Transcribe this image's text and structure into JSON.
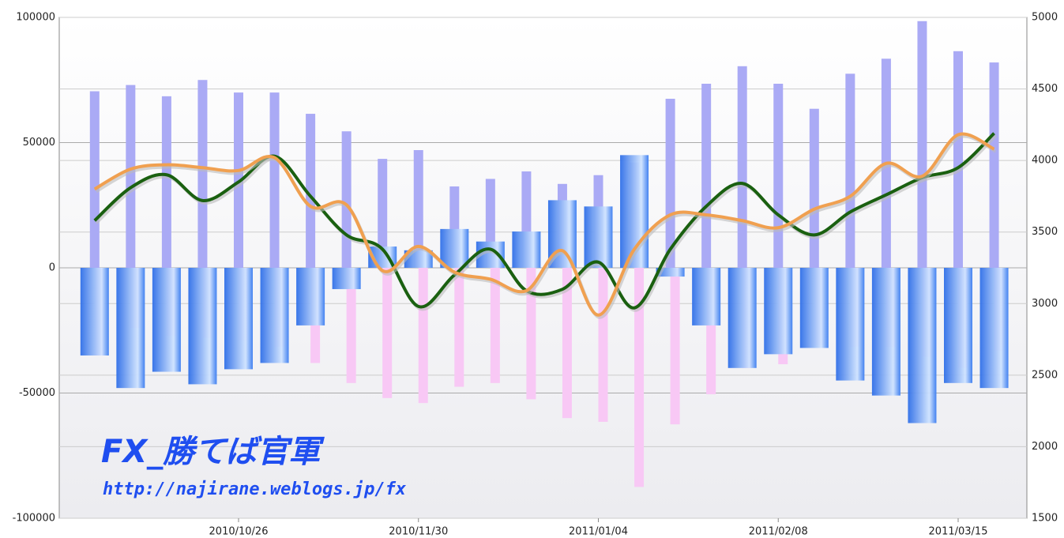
{
  "chart_data": {
    "type": "bar-line",
    "categories": [
      null,
      null,
      null,
      null,
      "2010/10/26",
      null,
      null,
      null,
      null,
      "2010/11/30",
      null,
      null,
      null,
      null,
      "2011/01/04",
      null,
      null,
      null,
      null,
      "2011/02/08",
      null,
      null,
      null,
      null,
      "2011/03/15",
      null
    ],
    "ylim": [
      -100000,
      100000
    ],
    "yticks": [
      -100000,
      -50000,
      0,
      50000,
      100000
    ],
    "y2lim": [
      1500,
      5000
    ],
    "y2ticks": [
      1500,
      2000,
      2500,
      3000,
      3500,
      4000,
      4500,
      5000
    ],
    "grid": true,
    "annotations": [
      "FX_勝てば官軍",
      "http://najirane.weblogs.jp/fx"
    ],
    "series": [
      {
        "type": "bar",
        "color": "#aaaaf5",
        "values": [
          70500,
          73000,
          68500,
          75000,
          70000,
          70000,
          61500,
          54500,
          43500,
          47000,
          32500,
          35500,
          38500,
          33500,
          37000,
          42000,
          67500,
          73500,
          80500,
          73500,
          63500,
          77500,
          83500,
          98500,
          86500,
          82000
        ]
      },
      {
        "type": "bar",
        "color": "#f8c8f5",
        "values": [
          -35000,
          -24000,
          -27000,
          -28000,
          -29000,
          -31500,
          -38000,
          -46000,
          -52000,
          -54000,
          -47500,
          -46000,
          -52500,
          -60000,
          -61500,
          -87500,
          -62500,
          -50500,
          -40000,
          -38500,
          -31000,
          -31500,
          -31500,
          -35500,
          -40000,
          -33000
        ]
      },
      {
        "type": "bar",
        "color": "#3a7cf0",
        "values": [
          -35000,
          -48000,
          -41500,
          -46500,
          -40500,
          -38000,
          -23000,
          -8500,
          8500,
          7000,
          15500,
          10500,
          14500,
          27000,
          24500,
          45000,
          -3500,
          -23000,
          -40000,
          -34500,
          -32000,
          -45000,
          -51000,
          -62000,
          -46000,
          -48000
        ]
      },
      {
        "type": "line",
        "axis": "y2",
        "color": "#1a6010",
        "values": [
          3580,
          3810,
          3900,
          3720,
          3850,
          4030,
          3750,
          3480,
          3380,
          2980,
          3200,
          3380,
          3090,
          3100,
          3290,
          2970,
          3380,
          3680,
          3840,
          3620,
          3480,
          3640,
          3760,
          3880,
          3950,
          4190
        ]
      },
      {
        "type": "line",
        "axis": "y2",
        "color": "#f0a050",
        "values": [
          3800,
          3940,
          3970,
          3950,
          3930,
          4020,
          3680,
          3690,
          3230,
          3400,
          3220,
          3170,
          3090,
          3370,
          2920,
          3380,
          3620,
          3620,
          3580,
          3530,
          3660,
          3750,
          3980,
          3890,
          4180,
          4080
        ]
      }
    ]
  }
}
